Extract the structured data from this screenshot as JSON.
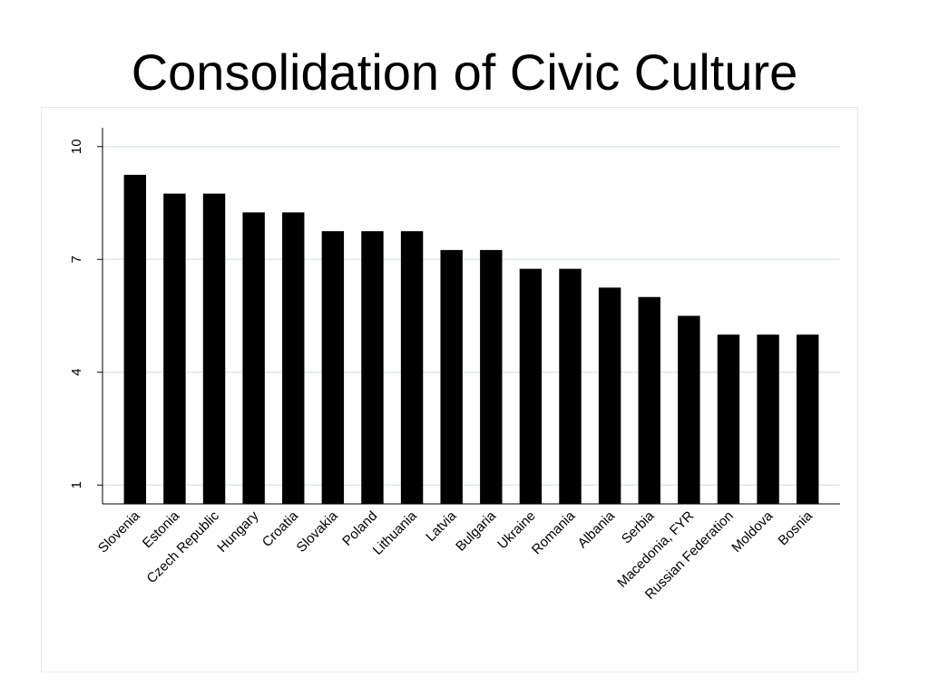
{
  "slide": {
    "title": "Consolidation of Civic Culture"
  },
  "chart_data": {
    "type": "bar",
    "title": "Consolidation of Civic Culture",
    "xlabel": "",
    "ylabel": "",
    "categories": [
      "Slovenia",
      "Estonia",
      "Czech Republic",
      "Hungary",
      "Croatia",
      "Slovakia",
      "Poland",
      "Lithuania",
      "Latvia",
      "Bulgaria",
      "Ukraine",
      "Romania",
      "Albania",
      "Serbia",
      "Macedonia, FYR",
      "Russian Federation",
      "Moldova",
      "Bosnia"
    ],
    "values": [
      9.25,
      8.75,
      8.75,
      8.25,
      8.25,
      7.75,
      7.75,
      7.75,
      7.25,
      7.25,
      6.75,
      6.75,
      6.25,
      6,
      5.5,
      5,
      5,
      5
    ],
    "ylim": [
      0.5,
      10.5
    ],
    "yticks": [
      1,
      4,
      7,
      10
    ],
    "grid": true,
    "bar_color": "#000000",
    "grid_color": "#e1e8ea",
    "axis_color": "#000000"
  }
}
